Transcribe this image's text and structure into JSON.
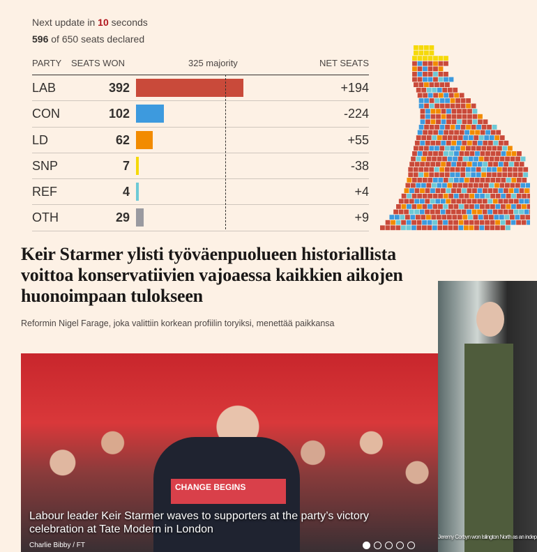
{
  "status": {
    "update_prefix": "Next update in ",
    "update_seconds": "10",
    "update_suffix": " seconds",
    "declared": "596",
    "declared_suffix": " of 650 seats declared"
  },
  "table": {
    "headers": {
      "party": "PARTY",
      "seats": "SEATS WON",
      "majority": "325 majority",
      "net": "NET SEATS"
    },
    "majority_seats": 325,
    "rows": [
      {
        "party": "LAB",
        "seats": "392",
        "value": 392,
        "net": "+194",
        "color": "#c94a3a"
      },
      {
        "party": "CON",
        "seats": "102",
        "value": 102,
        "net": "-224",
        "color": "#3d9ade"
      },
      {
        "party": "LD",
        "seats": "62",
        "value": 62,
        "net": "+55",
        "color": "#f28b00"
      },
      {
        "party": "SNP",
        "seats": "7",
        "value": 7,
        "net": "-38",
        "color": "#f5d90a"
      },
      {
        "party": "REF",
        "seats": "4",
        "value": 4,
        "net": "+4",
        "color": "#6ec9d6"
      },
      {
        "party": "OTH",
        "seats": "29",
        "value": 29,
        "net": "+9",
        "color": "#9a9aa0"
      }
    ]
  },
  "article": {
    "headline": "Keir Starmer ylisti työväenpuolueen historiallista voittoa konservatiivien vajoaessa kaikkien aikojen huonoimpaan tulokseen",
    "subheadline": "Reformin Nigel Farage, joka valittiin korkean profiilin toryiksi, menettää paikkansa"
  },
  "photo": {
    "podium_text": "CHANGE BEGINS",
    "caption": "Labour leader Keir Starmer waves to supporters at the party’s victory celebration at Tate Modern in London",
    "credit": "Charlie Bibby / FT",
    "slides": 5,
    "active_slide": 1
  },
  "photo2": {
    "caption": "Jeremy Corbyn won Islington North as an independent candid"
  }
}
